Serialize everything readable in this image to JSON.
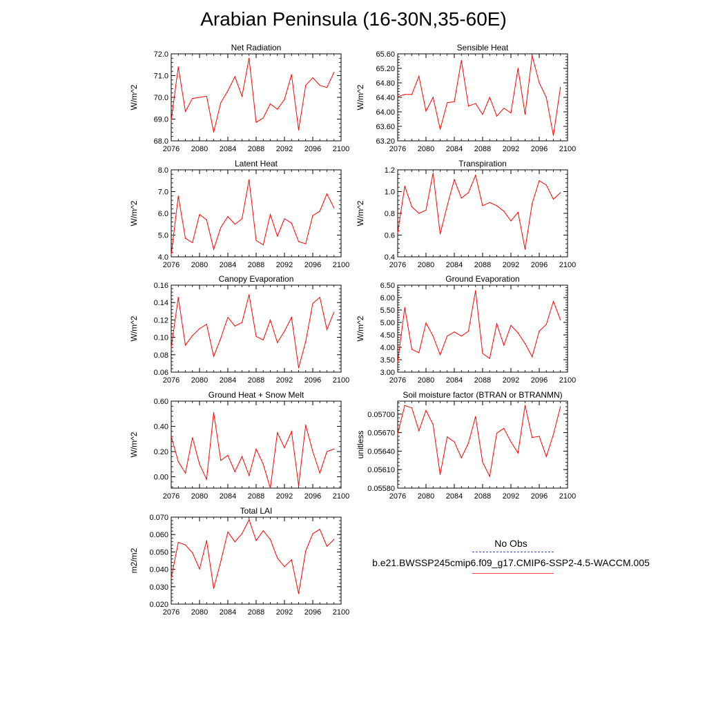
{
  "title": "Arabian Peninsula (16-30N,35-60E)",
  "legend": {
    "obs_label": "No Obs",
    "case_label": "b.e21.BWSSP245cmip6.f09_g17.CMIP6-SSP2-4.5-WACCM.005",
    "obs_color": "#3344aa",
    "case_color": "#ff0000"
  },
  "chart_data": [
    {
      "type": "line",
      "title": "Net Radiation",
      "ylabel": "W/m^2",
      "xlim": [
        2076,
        2100
      ],
      "ylim": [
        68.0,
        72.0
      ],
      "xticks": [
        "2076",
        "2080",
        "2084",
        "2088",
        "2092",
        "2096",
        "2100"
      ],
      "yticks": [
        "68.0",
        "69.0",
        "70.0",
        "71.0",
        "72.0"
      ],
      "x": [
        2076,
        2077,
        2078,
        2079,
        2080,
        2081,
        2082,
        2083,
        2084,
        2085,
        2086,
        2087,
        2088,
        2089,
        2090,
        2091,
        2092,
        2093,
        2094,
        2095,
        2096,
        2097,
        2098,
        2099
      ],
      "series": [
        {
          "color": "#ff0000",
          "values": [
            68.95,
            71.4,
            69.35,
            69.95,
            70.0,
            70.05,
            68.4,
            69.75,
            70.3,
            70.95,
            70.05,
            71.8,
            68.85,
            69.05,
            69.7,
            69.45,
            69.9,
            71.05,
            68.5,
            70.55,
            70.9,
            70.55,
            70.45,
            71.15
          ]
        }
      ]
    },
    {
      "type": "line",
      "title": "Sensible Heat",
      "ylabel": "W/m^2",
      "xlim": [
        2076,
        2100
      ],
      "ylim": [
        63.2,
        65.6
      ],
      "xticks": [
        "2076",
        "2080",
        "2084",
        "2088",
        "2092",
        "2096",
        "2100"
      ],
      "yticks": [
        "63.20",
        "63.60",
        "64.00",
        "64.40",
        "64.80",
        "65.20",
        "65.60"
      ],
      "x": [
        2076,
        2077,
        2078,
        2079,
        2080,
        2081,
        2082,
        2083,
        2084,
        2085,
        2086,
        2087,
        2088,
        2089,
        2090,
        2091,
        2092,
        2093,
        2094,
        2095,
        2096,
        2097,
        2098,
        2099
      ],
      "series": [
        {
          "color": "#ff0000",
          "values": [
            64.42,
            64.48,
            64.48,
            64.98,
            64.02,
            64.4,
            63.52,
            64.25,
            64.28,
            65.42,
            64.16,
            64.23,
            63.93,
            64.4,
            63.88,
            64.1,
            63.97,
            65.2,
            63.93,
            65.55,
            64.8,
            64.4,
            63.35,
            64.68
          ]
        }
      ]
    },
    {
      "type": "line",
      "title": "Latent Heat",
      "ylabel": "W/m^2",
      "xlim": [
        2076,
        2100
      ],
      "ylim": [
        4.0,
        8.0
      ],
      "xticks": [
        "2076",
        "2080",
        "2084",
        "2088",
        "2092",
        "2096",
        "2100"
      ],
      "yticks": [
        "4.0",
        "5.0",
        "6.0",
        "7.0",
        "8.0"
      ],
      "x": [
        2076,
        2077,
        2078,
        2079,
        2080,
        2081,
        2082,
        2083,
        2084,
        2085,
        2086,
        2087,
        2088,
        2089,
        2090,
        2091,
        2092,
        2093,
        2094,
        2095,
        2096,
        2097,
        2098,
        2099
      ],
      "series": [
        {
          "color": "#ff0000",
          "values": [
            4.1,
            6.8,
            4.85,
            4.65,
            5.95,
            5.7,
            4.35,
            5.35,
            5.85,
            5.5,
            5.75,
            7.55,
            4.75,
            4.55,
            5.95,
            4.95,
            5.75,
            5.55,
            4.7,
            4.6,
            5.9,
            6.1,
            6.9,
            6.25
          ]
        }
      ]
    },
    {
      "type": "line",
      "title": "Transpiration",
      "ylabel": "W/m^2",
      "xlim": [
        2076,
        2100
      ],
      "ylim": [
        0.4,
        1.2
      ],
      "xticks": [
        "2076",
        "2080",
        "2084",
        "2088",
        "2092",
        "2096",
        "2100"
      ],
      "yticks": [
        "0.4",
        "0.6",
        "0.8",
        "1.0",
        "1.2"
      ],
      "x": [
        2076,
        2077,
        2078,
        2079,
        2080,
        2081,
        2082,
        2083,
        2084,
        2085,
        2086,
        2087,
        2088,
        2089,
        2090,
        2091,
        2092,
        2093,
        2094,
        2095,
        2096,
        2097,
        2098,
        2099
      ],
      "series": [
        {
          "color": "#ff0000",
          "values": [
            0.62,
            1.05,
            0.86,
            0.8,
            0.83,
            1.17,
            0.61,
            0.87,
            1.11,
            0.94,
            0.99,
            1.15,
            0.87,
            0.9,
            0.87,
            0.82,
            0.73,
            0.81,
            0.47,
            0.89,
            1.1,
            1.06,
            0.93,
            0.99
          ]
        }
      ]
    },
    {
      "type": "line",
      "title": "Canopy Evaporation",
      "ylabel": "W/m^2",
      "xlim": [
        2076,
        2100
      ],
      "ylim": [
        0.06,
        0.16
      ],
      "xticks": [
        "2076",
        "2080",
        "2084",
        "2088",
        "2092",
        "2096",
        "2100"
      ],
      "yticks": [
        "0.06",
        "0.08",
        "0.10",
        "0.12",
        "0.14",
        "0.16"
      ],
      "x": [
        2076,
        2077,
        2078,
        2079,
        2080,
        2081,
        2082,
        2083,
        2084,
        2085,
        2086,
        2087,
        2088,
        2089,
        2090,
        2091,
        2092,
        2093,
        2094,
        2095,
        2096,
        2097,
        2098,
        2099
      ],
      "series": [
        {
          "color": "#ff0000",
          "values": [
            0.088,
            0.146,
            0.091,
            0.102,
            0.11,
            0.115,
            0.078,
            0.099,
            0.123,
            0.113,
            0.117,
            0.149,
            0.101,
            0.097,
            0.12,
            0.094,
            0.107,
            0.123,
            0.065,
            0.095,
            0.139,
            0.146,
            0.109,
            0.129
          ]
        }
      ]
    },
    {
      "type": "line",
      "title": "Ground Evaporation",
      "ylabel": "W/m^2",
      "xlim": [
        2076,
        2100
      ],
      "ylim": [
        3.0,
        6.5
      ],
      "xticks": [
        "2076",
        "2080",
        "2084",
        "2088",
        "2092",
        "2096",
        "2100"
      ],
      "yticks": [
        "3.00",
        "3.50",
        "4.00",
        "4.50",
        "5.00",
        "5.50",
        "6.00",
        "6.50"
      ],
      "x": [
        2076,
        2077,
        2078,
        2079,
        2080,
        2081,
        2082,
        2083,
        2084,
        2085,
        2086,
        2087,
        2088,
        2089,
        2090,
        2091,
        2092,
        2093,
        2094,
        2095,
        2096,
        2097,
        2098,
        2099
      ],
      "series": [
        {
          "color": "#ff0000",
          "values": [
            3.4,
            5.6,
            3.92,
            3.78,
            4.98,
            4.45,
            3.7,
            4.45,
            4.62,
            4.45,
            4.65,
            6.28,
            3.75,
            3.55,
            4.95,
            4.08,
            4.88,
            4.58,
            4.15,
            3.62,
            4.65,
            4.92,
            5.85,
            5.1
          ]
        }
      ]
    },
    {
      "type": "line",
      "title": "Ground Heat + Snow Melt",
      "ylabel": "W/m^2",
      "xlim": [
        2076,
        2100
      ],
      "ylim": [
        -0.09,
        0.6
      ],
      "xticks": [
        "2076",
        "2080",
        "2084",
        "2088",
        "2092",
        "2096",
        "2100"
      ],
      "yticks": [
        "0.00",
        "0.20",
        "0.40",
        "0.60"
      ],
      "ytick_values": [
        0.0,
        0.2,
        0.4,
        0.6
      ],
      "x": [
        2076,
        2077,
        2078,
        2079,
        2080,
        2081,
        2082,
        2083,
        2084,
        2085,
        2086,
        2087,
        2088,
        2089,
        2090,
        2091,
        2092,
        2093,
        2094,
        2095,
        2096,
        2097,
        2098,
        2099
      ],
      "series": [
        {
          "color": "#ff0000",
          "values": [
            0.32,
            0.12,
            0.03,
            0.31,
            0.1,
            -0.02,
            0.51,
            0.13,
            0.17,
            0.04,
            0.16,
            0.01,
            0.22,
            0.1,
            -0.09,
            0.35,
            0.23,
            0.36,
            -0.07,
            0.41,
            0.2,
            0.03,
            0.2,
            0.22
          ]
        }
      ]
    },
    {
      "type": "line",
      "title": "Soil moisture factor (BTRAN or BTRANMN)",
      "ylabel": "unitless",
      "xlim": [
        2076,
        2100
      ],
      "ylim": [
        0.0558,
        0.05721
      ],
      "xticks": [
        "2076",
        "2080",
        "2084",
        "2088",
        "2092",
        "2096",
        "2100"
      ],
      "yticks": [
        "0.05580",
        "0.05610",
        "0.05640",
        "0.05670",
        "0.05700"
      ],
      "ytick_values": [
        0.0558,
        0.0561,
        0.0564,
        0.0567,
        0.057
      ],
      "x": [
        2076,
        2077,
        2078,
        2079,
        2080,
        2081,
        2082,
        2083,
        2084,
        2085,
        2086,
        2087,
        2088,
        2089,
        2090,
        2091,
        2092,
        2093,
        2094,
        2095,
        2096,
        2097,
        2098,
        2099
      ],
      "series": [
        {
          "color": "#ff0000",
          "values": [
            0.05668,
            0.05714,
            0.0571,
            0.05673,
            0.05706,
            0.05683,
            0.05602,
            0.05663,
            0.05655,
            0.05629,
            0.05653,
            0.05696,
            0.05622,
            0.05599,
            0.05669,
            0.05677,
            0.05655,
            0.05637,
            0.05714,
            0.05662,
            0.05664,
            0.05631,
            0.05667,
            0.05712
          ]
        }
      ]
    },
    {
      "type": "line",
      "title": "Total LAI",
      "ylabel": "m2/m2",
      "xlim": [
        2076,
        2100
      ],
      "ylim": [
        0.02,
        0.07
      ],
      "xticks": [
        "2076",
        "2080",
        "2084",
        "2088",
        "2092",
        "2096",
        "2100"
      ],
      "yticks": [
        "0.020",
        "0.030",
        "0.040",
        "0.050",
        "0.060",
        "0.070"
      ],
      "x": [
        2076,
        2077,
        2078,
        2079,
        2080,
        2081,
        2082,
        2083,
        2084,
        2085,
        2086,
        2087,
        2088,
        2089,
        2090,
        2091,
        2092,
        2093,
        2094,
        2095,
        2096,
        2097,
        2098,
        2099
      ],
      "series": [
        {
          "color": "#ff0000",
          "values": [
            0.035,
            0.0555,
            0.054,
            0.0495,
            0.0402,
            0.0565,
            0.029,
            0.0445,
            0.0615,
            0.0558,
            0.0605,
            0.0685,
            0.0565,
            0.0622,
            0.0572,
            0.0465,
            0.0415,
            0.0455,
            0.026,
            0.0505,
            0.0605,
            0.063,
            0.0532,
            0.0572
          ]
        }
      ]
    }
  ]
}
